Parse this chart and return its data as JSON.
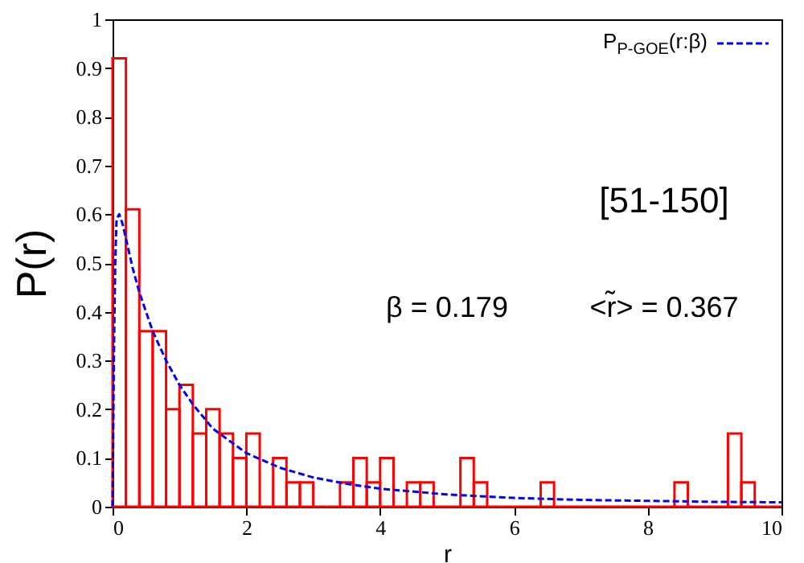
{
  "chart_data": {
    "type": "histogram",
    "xlabel": "r",
    "ylabel": "P(r)",
    "annotations": [
      "[51-150]",
      "β = 0.179",
      "<r̃> = 0.367"
    ],
    "bins": [
      0,
      0.2,
      0.4,
      0.6,
      0.8,
      1,
      1.2,
      1.4,
      1.6,
      1.8,
      2,
      2.2,
      2.4,
      2.6,
      2.8,
      3,
      3.2,
      3.4,
      3.6,
      3.8,
      4,
      4.2,
      4.4,
      4.6,
      4.8,
      5,
      5.2,
      5.4,
      5.6,
      5.8,
      6,
      6.2,
      6.4,
      6.6,
      6.8,
      7,
      7.2,
      7.4,
      7.6,
      7.8,
      8,
      8.2,
      8.4,
      8.6,
      8.8,
      9,
      9.2,
      9.4,
      9.6,
      9.8,
      10
    ],
    "series": [
      {
        "color": "#ff0000",
        "values": [
          0.92,
          0.61,
          0.36,
          0.36,
          0.2,
          0.25,
          0.15,
          0.2,
          0.15,
          0.1,
          0.15,
          0,
          0.1,
          0.05,
          0.05,
          0,
          0,
          0.05,
          0.1,
          0.05,
          0.1,
          0,
          0.05,
          0.05,
          0,
          0,
          0.1,
          0.05,
          0,
          0,
          0,
          0,
          0.05,
          0,
          0,
          0,
          0,
          0,
          0,
          0,
          0,
          0,
          0.05,
          0,
          0,
          0,
          0.15,
          0.05,
          0,
          0
        ]
      },
      {
        "type": "line",
        "name": "P$_{P-GOE}$(r:β)",
        "color": "#0000ff",
        "line_style": "dashed",
        "x": [
          0,
          0.01,
          0.02,
          0.04,
          0.06,
          0.1,
          0.15,
          0.2,
          0.3,
          0.4,
          0.6,
          0.8,
          1,
          1.2,
          1.5,
          2,
          2.5,
          3,
          3.5,
          4,
          5,
          6,
          7,
          8,
          9,
          10
        ],
        "values": [
          0,
          0.15,
          0.31,
          0.5,
          0.59,
          0.6,
          0.58,
          0.55,
          0.49,
          0.44,
          0.36,
          0.3,
          0.25,
          0.21,
          0.16,
          0.11,
          0.08,
          0.06,
          0.047,
          0.037,
          0.025,
          0.018,
          0.014,
          0.012,
          0.01,
          0.009
        ]
      }
    ],
    "xlim": [
      0,
      10
    ],
    "xticks": [
      0,
      2,
      4,
      6,
      8,
      10
    ],
    "ylim": [
      0,
      1
    ],
    "yticks": [
      0,
      0.1,
      0.2,
      0.3,
      0.4,
      0.5,
      0.6,
      0.7,
      0.8,
      0.9,
      1
    ],
    "grid": false,
    "legend": "top right"
  }
}
